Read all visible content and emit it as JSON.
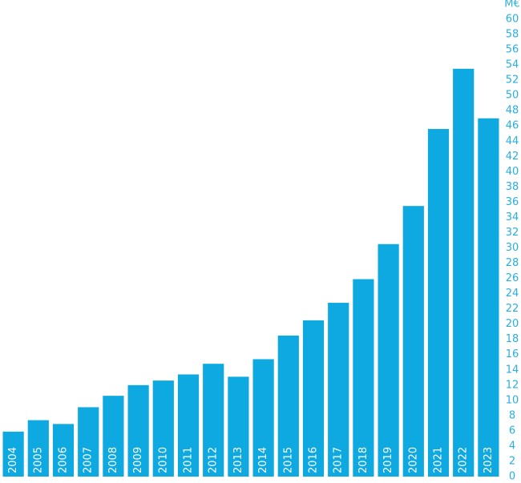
{
  "chart_data": {
    "type": "bar",
    "y_label": "M€",
    "categories": [
      "2004",
      "2005",
      "2006",
      "2007",
      "2008",
      "2009",
      "2010",
      "2011",
      "2012",
      "2013",
      "2014",
      "2015",
      "2016",
      "2017",
      "2018",
      "2019",
      "2020",
      "2021",
      "2022",
      "2023"
    ],
    "values": [
      5.9,
      7.4,
      6.9,
      9.1,
      10.6,
      12.0,
      12.6,
      13.4,
      14.8,
      13.1,
      15.4,
      18.5,
      20.5,
      22.8,
      25.9,
      30.5,
      35.5,
      45.6,
      53.5,
      47.0
    ],
    "color": "#0fa9e1",
    "ylim": [
      0,
      60
    ],
    "yticks": [
      0,
      2,
      4,
      6,
      8,
      10,
      12,
      14,
      16,
      18,
      20,
      22,
      24,
      26,
      28,
      30,
      32,
      34,
      36,
      38,
      40,
      42,
      44,
      46,
      48,
      50,
      52,
      54,
      56,
      58,
      60
    ]
  }
}
